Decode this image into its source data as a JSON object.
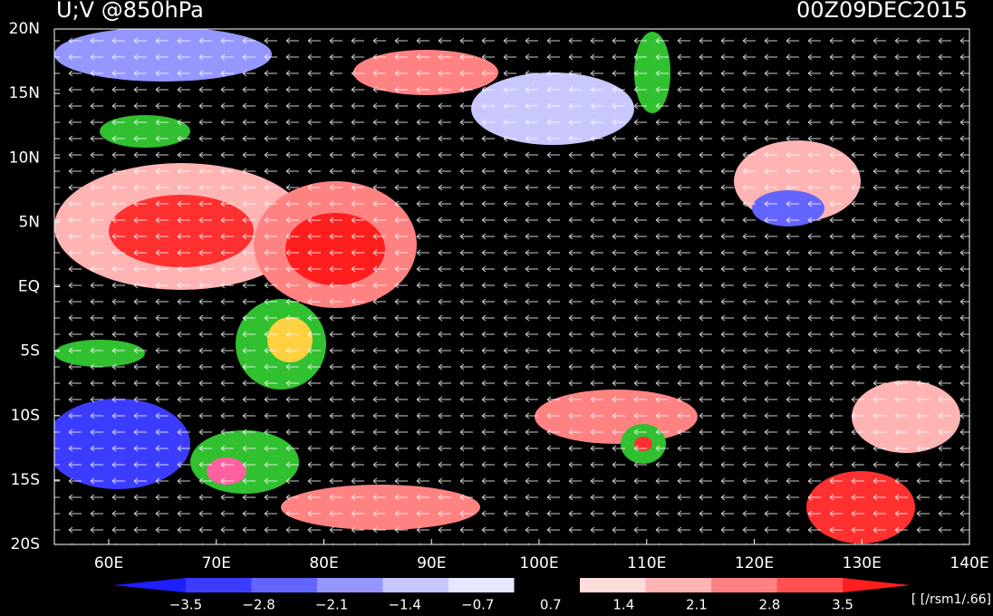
{
  "header": {
    "title": "U;V @850hPa",
    "time": "00Z09DEC2015"
  },
  "map": {
    "lat_labels": [
      "20N",
      "15N",
      "10N",
      "5N",
      "EQ",
      "5S",
      "10S",
      "15S",
      "20S"
    ],
    "lon_labels": [
      "60E",
      "70E",
      "80E",
      "90E",
      "100E",
      "110E",
      "120E",
      "130E",
      "140E"
    ]
  },
  "colorbar": {
    "labels": [
      "−3.5",
      "−2.8",
      "−2.1",
      "−1.4",
      "−0.7",
      "0.7",
      "1.4",
      "2.1",
      "2.8",
      "3.5"
    ],
    "colors": [
      "#1e1eff",
      "#3c3cff",
      "#6464ff",
      "#9696ff",
      "#c8c8ff",
      "#e6e6ff",
      "#000000",
      "#ffdcdc",
      "#ffb4b4",
      "#ff8282",
      "#ff5050",
      "#ff1e1e"
    ],
    "unit": "[ [/rsm1/.66]"
  }
}
